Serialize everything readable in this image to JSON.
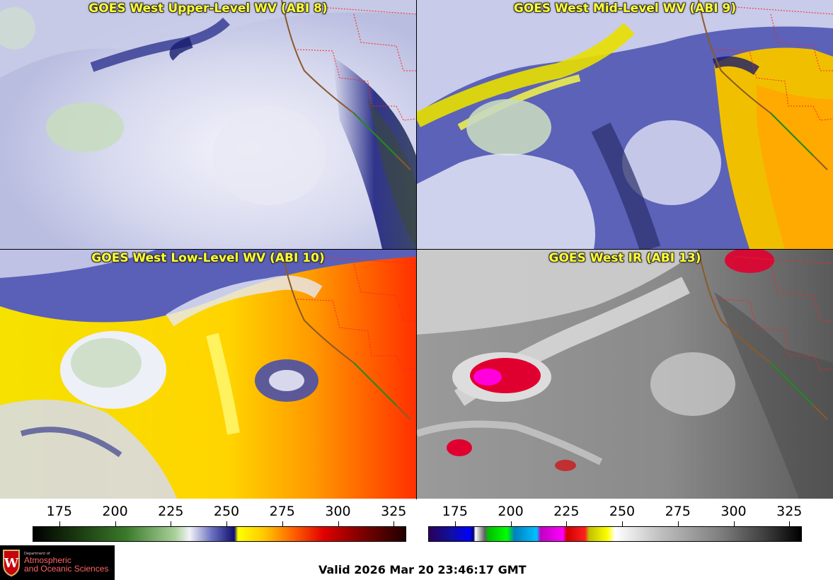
{
  "panels": [
    {
      "title": "GOES West Upper-Level WV (ABI 8)"
    },
    {
      "title": "GOES West Mid-Level WV (ABI 9)"
    },
    {
      "title": "GOES West Low-Level WV (ABI 10)"
    },
    {
      "title": "GOES West IR (ABI 13)"
    }
  ],
  "colorbars": [
    {
      "ticks": [
        "175",
        "200",
        "225",
        "250",
        "275",
        "300",
        "325"
      ],
      "values": [
        175,
        200,
        225,
        250,
        275,
        300,
        325
      ],
      "range": [
        163,
        330
      ]
    },
    {
      "ticks": [
        "175",
        "200",
        "225",
        "250",
        "275",
        "300",
        "325"
      ],
      "values": [
        175,
        200,
        225,
        250,
        275,
        300,
        325
      ],
      "range": [
        163,
        330
      ]
    }
  ],
  "logo": {
    "line1": "Department of",
    "line2": "Atmospheric",
    "line3": "and Oceanic Sciences"
  },
  "valid_time": "Valid 2026 Mar 20 23:46:17 GMT",
  "colors": {
    "title": "#ffff33",
    "coast": "#8b5a2b",
    "border": "#ff0000",
    "logo_bg": "#000000"
  }
}
